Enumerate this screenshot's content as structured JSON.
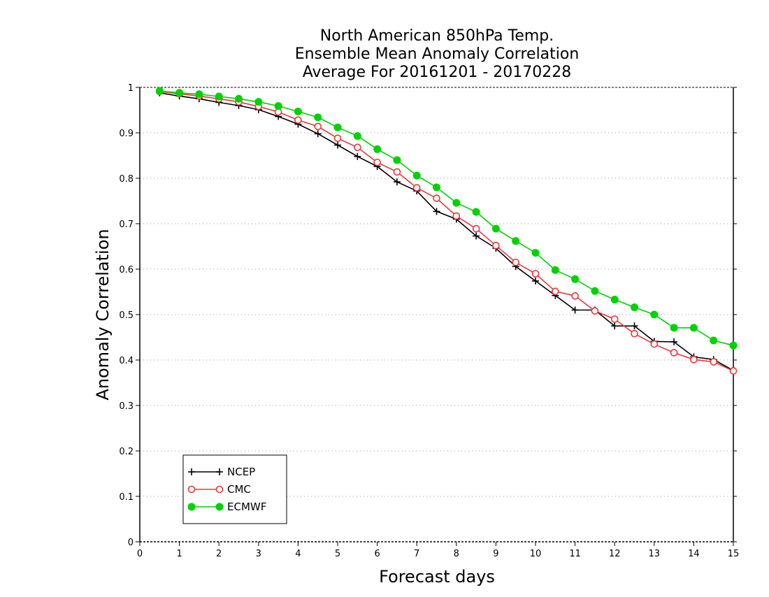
{
  "chart_data": {
    "type": "line",
    "title_lines": [
      "North American 850hPa Temp.",
      "Ensemble Mean Anomaly Correlation",
      "Average For 20161201 - 20170228"
    ],
    "xlabel": "Forecast days",
    "ylabel": "Anomaly Correlation",
    "xlim": [
      0,
      15
    ],
    "ylim": [
      0,
      1
    ],
    "x_ticks": [
      0,
      1,
      2,
      3,
      4,
      5,
      6,
      7,
      8,
      9,
      10,
      11,
      12,
      13,
      14,
      15
    ],
    "x_tick_labels": [
      "0",
      "1",
      "2",
      "3",
      "4",
      "5",
      "6",
      "7",
      "8",
      "9",
      "10",
      "11",
      "12",
      "13",
      "14",
      "15"
    ],
    "y_ticks": [
      0,
      0.1,
      0.2,
      0.3,
      0.4,
      0.5,
      0.6,
      0.7,
      0.8,
      0.9,
      1
    ],
    "y_tick_labels": [
      "0",
      "0.1",
      "0.2",
      "0.3",
      "0.4",
      "0.5",
      "0.6",
      "0.7",
      "0.8",
      "0.9",
      "1"
    ],
    "grid": "horizontal dotted",
    "legend_position": "bottom-left",
    "x": [
      0.5,
      1,
      1.5,
      2,
      2.5,
      3,
      3.5,
      4,
      4.5,
      5,
      5.5,
      6,
      6.5,
      7,
      7.5,
      8,
      8.5,
      9,
      9.5,
      10,
      10.5,
      11,
      11.5,
      12,
      12.5,
      13,
      13.5,
      14,
      14.5,
      15
    ],
    "series": [
      {
        "name": "NCEP",
        "color": "#000000",
        "marker": "plus",
        "values": [
          0.988,
          0.981,
          0.975,
          0.967,
          0.96,
          0.951,
          0.936,
          0.919,
          0.898,
          0.873,
          0.848,
          0.826,
          0.792,
          0.772,
          0.727,
          0.71,
          0.673,
          0.646,
          0.606,
          0.574,
          0.542,
          0.51,
          0.51,
          0.475,
          0.475,
          0.441,
          0.44,
          0.407,
          0.401,
          0.377
        ]
      },
      {
        "name": "CMC",
        "color": "#e8383d",
        "marker": "open-circle",
        "values": [
          0.991,
          0.986,
          0.981,
          0.975,
          0.968,
          0.958,
          0.946,
          0.928,
          0.914,
          0.888,
          0.868,
          0.835,
          0.814,
          0.779,
          0.756,
          0.717,
          0.689,
          0.652,
          0.615,
          0.59,
          0.551,
          0.541,
          0.508,
          0.49,
          0.458,
          0.435,
          0.416,
          0.401,
          0.396,
          0.376
        ]
      },
      {
        "name": "ECMWF",
        "color": "#00d200",
        "marker": "filled-circle",
        "values": [
          0.992,
          0.988,
          0.985,
          0.98,
          0.975,
          0.968,
          0.959,
          0.947,
          0.934,
          0.912,
          0.893,
          0.864,
          0.84,
          0.806,
          0.78,
          0.746,
          0.726,
          0.689,
          0.662,
          0.636,
          0.598,
          0.578,
          0.552,
          0.533,
          0.516,
          0.5,
          0.471,
          0.471,
          0.443,
          0.432
        ]
      }
    ]
  }
}
